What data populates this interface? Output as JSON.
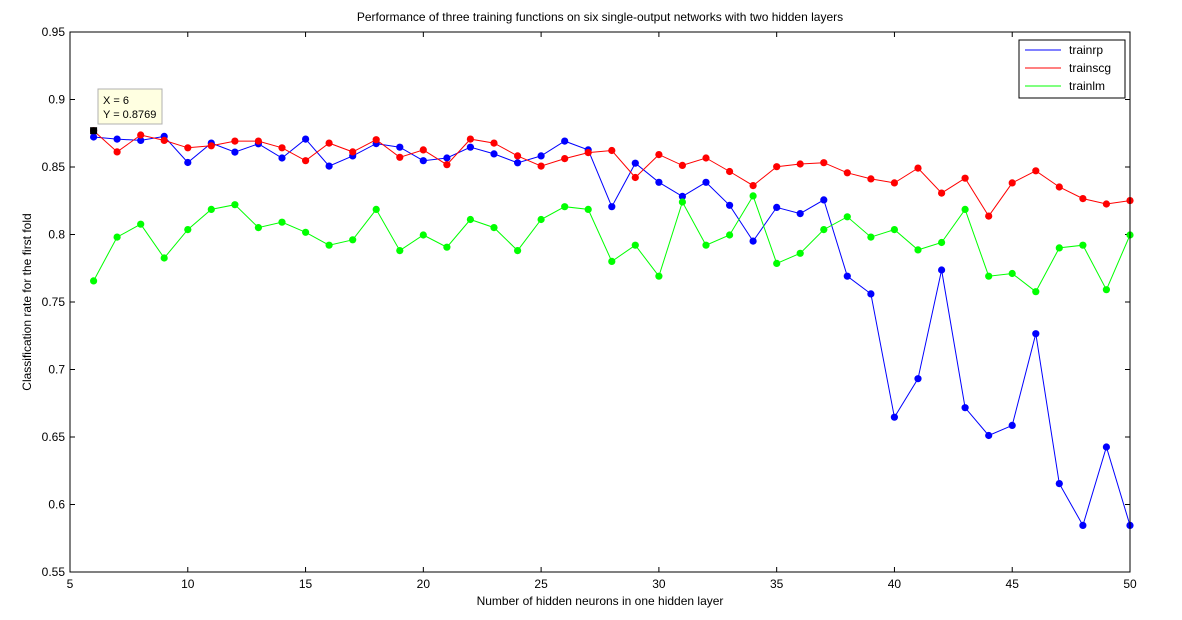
{
  "chart_data": {
    "type": "line",
    "title": "Performance of three training functions on six single-output networks with two hidden layers",
    "xlabel": "Number of hidden neurons in one hidden layer",
    "ylabel": "Classification rate for the first fold",
    "xlim": [
      5,
      50
    ],
    "ylim": [
      0.55,
      0.95
    ],
    "xticks": [
      5,
      10,
      15,
      20,
      25,
      30,
      35,
      40,
      45,
      50
    ],
    "yticks": [
      0.55,
      0.6,
      0.65,
      0.7,
      0.75,
      0.8,
      0.85,
      0.9,
      0.95
    ],
    "xtick_labels": [
      "5",
      "10",
      "15",
      "20",
      "25",
      "30",
      "35",
      "40",
      "45",
      "50"
    ],
    "ytick_labels": [
      "0.55",
      "0.6",
      "0.65",
      "0.7",
      "0.75",
      "0.8",
      "0.85",
      "0.9",
      "0.95"
    ],
    "grid": false,
    "legend_position": "top-right",
    "x": [
      6,
      7,
      8,
      9,
      10,
      11,
      12,
      13,
      14,
      15,
      16,
      17,
      18,
      19,
      20,
      21,
      22,
      23,
      24,
      25,
      26,
      27,
      28,
      29,
      30,
      31,
      32,
      33,
      34,
      35,
      36,
      37,
      38,
      39,
      40,
      41,
      42,
      43,
      44,
      45,
      46,
      47,
      48,
      49,
      50
    ],
    "series": [
      {
        "name": "trainrp",
        "color": "#0000ff",
        "values": [
          0.8722,
          0.8707,
          0.8697,
          0.8727,
          0.8533,
          0.8677,
          0.861,
          0.8672,
          0.8567,
          0.8707,
          0.8507,
          0.8582,
          0.8673,
          0.8647,
          0.8547,
          0.8567,
          0.8647,
          0.8597,
          0.8531,
          0.8582,
          0.8692,
          0.8627,
          0.8206,
          0.8528,
          0.8387,
          0.8282,
          0.8387,
          0.8216,
          0.7951,
          0.8201,
          0.8155,
          0.8256,
          0.7691,
          0.756,
          0.6647,
          0.6932,
          0.7737,
          0.6717,
          0.6511,
          0.6586,
          0.7265,
          0.6155,
          0.5845,
          0.6426,
          0.5845
        ]
      },
      {
        "name": "trainscg",
        "color": "#ff0000",
        "values": [
          0.8769,
          0.8612,
          0.8737,
          0.8697,
          0.8642,
          0.8657,
          0.8692,
          0.8692,
          0.8642,
          0.8547,
          0.8677,
          0.8612,
          0.8702,
          0.8572,
          0.8627,
          0.8517,
          0.8707,
          0.8677,
          0.8582,
          0.8507,
          0.8562,
          0.8607,
          0.8622,
          0.8422,
          0.8592,
          0.8512,
          0.8567,
          0.8467,
          0.8362,
          0.8502,
          0.8522,
          0.8532,
          0.8457,
          0.8412,
          0.8382,
          0.8492,
          0.8307,
          0.8417,
          0.8136,
          0.8382,
          0.8472,
          0.8352,
          0.8266,
          0.8226,
          0.8251
        ]
      },
      {
        "name": "trainlm",
        "color": "#00ff00",
        "values": [
          0.7656,
          0.7981,
          0.8076,
          0.7826,
          0.8036,
          0.8186,
          0.8221,
          0.8051,
          0.8091,
          0.8016,
          0.7921,
          0.7961,
          0.8186,
          0.7881,
          0.7996,
          0.7906,
          0.8111,
          0.8051,
          0.7881,
          0.8111,
          0.8206,
          0.8186,
          0.7801,
          0.7921,
          0.7691,
          0.8241,
          0.7921,
          0.7996,
          0.8286,
          0.7786,
          0.7861,
          0.8036,
          0.8131,
          0.7981,
          0.8036,
          0.7886,
          0.7941,
          0.8186,
          0.7691,
          0.7711,
          0.7576,
          0.7901,
          0.7921,
          0.7591,
          0.7996
        ]
      }
    ],
    "datatip": {
      "x": 6,
      "y": 0.8769,
      "line1": "X = 6",
      "line2": "Y = 0.8769"
    }
  }
}
